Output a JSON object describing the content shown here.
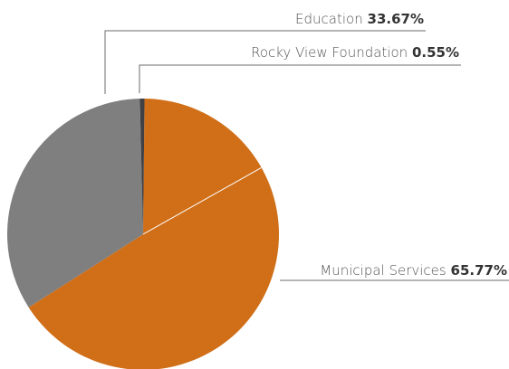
{
  "chart_data": {
    "type": "pie",
    "slices": [
      {
        "label": "Municipal Services",
        "value": 65.77,
        "display": "65.77%",
        "color": "#D06F18"
      },
      {
        "label": "Education",
        "value": 33.67,
        "display": "33.67%",
        "color": "#7F7F80"
      },
      {
        "label": "Rocky View Foundation",
        "value": 0.55,
        "display": "0.55%",
        "color": "#404045"
      }
    ],
    "title": "",
    "legend": "none",
    "start_angle_deg": 0,
    "direction": "clockwise",
    "data_labels": "outside with leader lines"
  }
}
